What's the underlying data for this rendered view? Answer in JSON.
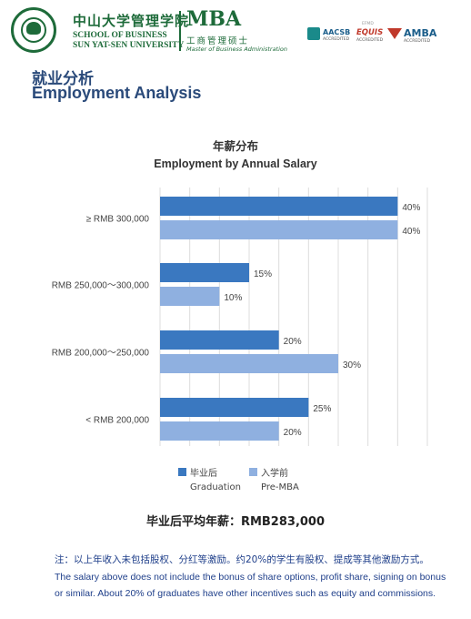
{
  "header": {
    "school_cn": "中山大学管理学院",
    "school_en_line1": "SCHOOL OF BUSINESS",
    "school_en_line2": "SUN YAT-SEN UNIVERSITY",
    "program": "MBA",
    "program_cn": "工商管理硕士",
    "program_en": "Master of Business Administration",
    "accreditations": [
      {
        "name": "AACSB",
        "sub": "ACCREDITED"
      },
      {
        "name": "EQUIS",
        "top": "EFMD",
        "sub": "ACCREDITED"
      },
      {
        "name": "AMBA",
        "sub": "ACCREDITED"
      }
    ],
    "brand_color": "#1e6b3a"
  },
  "page": {
    "title_cn": "就业分析",
    "title_en": "Employment Analysis"
  },
  "chart_data": {
    "type": "bar",
    "orientation": "horizontal",
    "title_cn": "年薪分布",
    "title_en": "Employment by Annual Salary",
    "categories": [
      "≥ RMB 300,000",
      "RMB 250,000～300,000",
      "RMB 200,000～250,000",
      "< RMB 200,000"
    ],
    "series": [
      {
        "name_cn": "毕业后",
        "name_en": "Graduation",
        "color": "#3a78c0",
        "values": [
          40,
          15,
          20,
          25
        ]
      },
      {
        "name_cn": "入学前",
        "name_en": "Pre-MBA",
        "color": "#8fb0e0",
        "values": [
          40,
          10,
          30,
          20
        ]
      }
    ],
    "unit": "%",
    "xlim": [
      0,
      45
    ],
    "grid": true,
    "legend_position": "bottom"
  },
  "summary": {
    "avg_salary": "毕业后平均年薪：RMB283,000"
  },
  "notes": {
    "cn": "注：以上年收入未包括股权、分红等激励。约20%的学生有股权、提成等其他激励方式。",
    "en": "The salary above does not include the bonus of share options, profit share, signing on bonus or similar. About 20% of graduates have other incentives such as equity and commissions."
  }
}
